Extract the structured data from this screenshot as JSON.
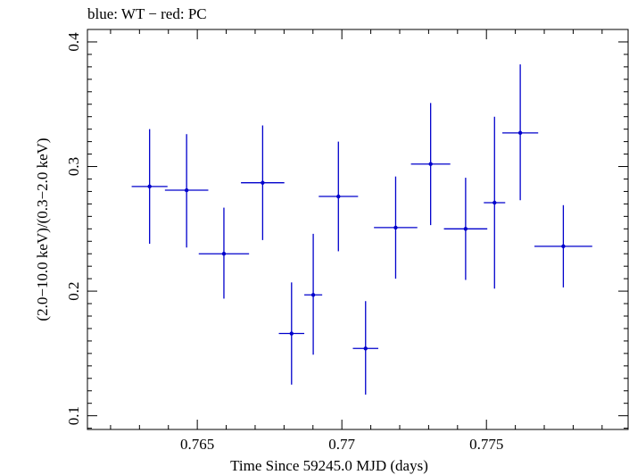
{
  "chart_data": {
    "type": "scatter",
    "title": "blue: WT − red: PC",
    "xlabel": "Time Since 59245.0 MJD (days)",
    "ylabel": "(2.0−10.0 keV)/(0.3−2.0 keV)",
    "xlim": [
      0.7612,
      0.7799
    ],
    "ylim": [
      0.089,
      0.41
    ],
    "x_ticks": [
      0.765,
      0.77,
      0.775
    ],
    "x_tick_labels": [
      "0.765",
      "0.77",
      "0.775"
    ],
    "y_ticks": [
      0.1,
      0.2,
      0.3,
      0.4
    ],
    "y_tick_labels": [
      "0.1",
      "0.2",
      "0.3",
      "0.4"
    ],
    "grid": false,
    "color": "#0000cc",
    "series": [
      {
        "points": [
          {
            "x": 0.76335,
            "xerr": 0.00062,
            "y": 0.284,
            "ylo": 0.238,
            "yhi": 0.33
          },
          {
            "x": 0.76463,
            "xerr": 0.00075,
            "y": 0.281,
            "ylo": 0.235,
            "yhi": 0.326
          },
          {
            "x": 0.76592,
            "xerr": 0.00087,
            "y": 0.23,
            "ylo": 0.194,
            "yhi": 0.267
          },
          {
            "x": 0.76726,
            "xerr": 0.00075,
            "y": 0.287,
            "ylo": 0.241,
            "yhi": 0.333
          },
          {
            "x": 0.76826,
            "xerr": 0.00044,
            "y": 0.166,
            "ylo": 0.125,
            "yhi": 0.207
          },
          {
            "x": 0.76901,
            "xerr": 0.00031,
            "y": 0.197,
            "ylo": 0.149,
            "yhi": 0.246
          },
          {
            "x": 0.76988,
            "xerr": 0.00068,
            "y": 0.276,
            "ylo": 0.232,
            "yhi": 0.32
          },
          {
            "x": 0.77082,
            "xerr": 0.00044,
            "y": 0.154,
            "ylo": 0.117,
            "yhi": 0.192
          },
          {
            "x": 0.77186,
            "xerr": 0.00075,
            "y": 0.251,
            "ylo": 0.21,
            "yhi": 0.292
          },
          {
            "x": 0.77307,
            "xerr": 0.00068,
            "y": 0.302,
            "ylo": 0.253,
            "yhi": 0.351
          },
          {
            "x": 0.77428,
            "xerr": 0.00075,
            "y": 0.25,
            "ylo": 0.209,
            "yhi": 0.291
          },
          {
            "x": 0.77528,
            "xerr": 0.00037,
            "y": 0.271,
            "ylo": 0.202,
            "yhi": 0.34
          },
          {
            "x": 0.77617,
            "xerr": 0.00062,
            "y": 0.327,
            "ylo": 0.273,
            "yhi": 0.382
          },
          {
            "x": 0.77766,
            "xerr": 0.001,
            "y": 0.236,
            "ylo": 0.203,
            "yhi": 0.269
          }
        ]
      }
    ]
  }
}
